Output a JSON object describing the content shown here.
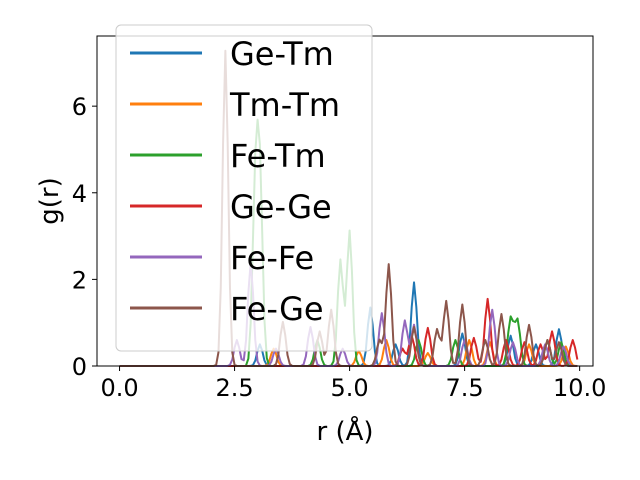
{
  "chart_data": {
    "type": "line",
    "title": "",
    "xlabel": "r (Å)",
    "ylabel": "g(r)",
    "xlim": [
      -0.49,
      10.29
    ],
    "ylim": [
      0,
      7.62
    ],
    "xticks": [
      0.0,
      2.5,
      5.0,
      7.5,
      10.0
    ],
    "xtick_labels": [
      "0.0",
      "2.5",
      "5.0",
      "7.5",
      "10.0"
    ],
    "yticks": [
      0,
      2,
      4,
      6
    ],
    "ytick_labels": [
      "0",
      "2",
      "4",
      "6"
    ],
    "grid": false,
    "legend_position": "upper-left",
    "series": [
      {
        "name": "Ge-Tm",
        "color": "#1f77b4",
        "peaks": [
          [
            3.05,
            0.5
          ],
          [
            5.45,
            1.35
          ],
          [
            6.0,
            0.5
          ],
          [
            6.4,
            1.93
          ],
          [
            7.45,
            0.75
          ],
          [
            8.5,
            0.7
          ],
          [
            9.05,
            0.5
          ],
          [
            9.55,
            0.85
          ]
        ]
      },
      {
        "name": "Tm-Tm",
        "color": "#ff7f0e",
        "peaks": [
          [
            3.35,
            0.4
          ],
          [
            5.2,
            0.35
          ],
          [
            5.8,
            0.6
          ],
          [
            6.7,
            0.3
          ],
          [
            7.6,
            0.6
          ],
          [
            8.05,
            0.55
          ],
          [
            8.9,
            0.5
          ],
          [
            9.7,
            0.45
          ]
        ]
      },
      {
        "name": "Fe-Tm",
        "color": "#2ca02c",
        "peaks": [
          [
            2.95,
            3.9
          ],
          [
            3.05,
            4.15
          ],
          [
            4.3,
            0.6
          ],
          [
            4.8,
            2.45
          ],
          [
            5.0,
            3.12
          ],
          [
            6.5,
            0.6
          ],
          [
            7.3,
            0.6
          ],
          [
            8.5,
            1.1
          ],
          [
            8.65,
            1.05
          ],
          [
            9.3,
            0.6
          ],
          [
            9.6,
            0.55
          ]
        ]
      },
      {
        "name": "Ge-Ge",
        "color": "#d62728",
        "peaks": [
          [
            6.15,
            0.4
          ],
          [
            6.35,
            0.7
          ],
          [
            6.7,
            0.88
          ],
          [
            7.7,
            0.65
          ],
          [
            8.0,
            1.55
          ],
          [
            8.4,
            0.6
          ],
          [
            8.8,
            0.55
          ],
          [
            9.15,
            0.5
          ],
          [
            9.4,
            0.8
          ],
          [
            9.85,
            0.6
          ]
        ]
      },
      {
        "name": "Fe-Fe",
        "color": "#9467bd",
        "peaks": [
          [
            2.55,
            0.6
          ],
          [
            2.85,
            2.4
          ],
          [
            3.4,
            0.4
          ],
          [
            4.15,
            0.9
          ],
          [
            4.85,
            0.4
          ],
          [
            5.7,
            1.22
          ],
          [
            6.2,
            1.05
          ],
          [
            6.4,
            0.95
          ],
          [
            7.5,
            0.6
          ],
          [
            8.1,
            1.3
          ],
          [
            8.55,
            0.55
          ],
          [
            9.25,
            0.5
          ],
          [
            9.65,
            0.45
          ]
        ]
      },
      {
        "name": "Fe-Ge",
        "color": "#8c564b",
        "peaks": [
          [
            2.3,
            7.28
          ],
          [
            3.55,
            1.02
          ],
          [
            4.35,
            0.8
          ],
          [
            4.6,
            1.3
          ],
          [
            5.65,
            0.6
          ],
          [
            5.85,
            2.35
          ],
          [
            6.4,
            0.9
          ],
          [
            6.9,
            0.85
          ],
          [
            7.1,
            1.5
          ],
          [
            7.45,
            1.42
          ],
          [
            7.95,
            0.6
          ],
          [
            8.3,
            1.2
          ],
          [
            8.9,
            0.95
          ],
          [
            9.3,
            0.6
          ],
          [
            9.55,
            0.55
          ]
        ]
      }
    ]
  }
}
